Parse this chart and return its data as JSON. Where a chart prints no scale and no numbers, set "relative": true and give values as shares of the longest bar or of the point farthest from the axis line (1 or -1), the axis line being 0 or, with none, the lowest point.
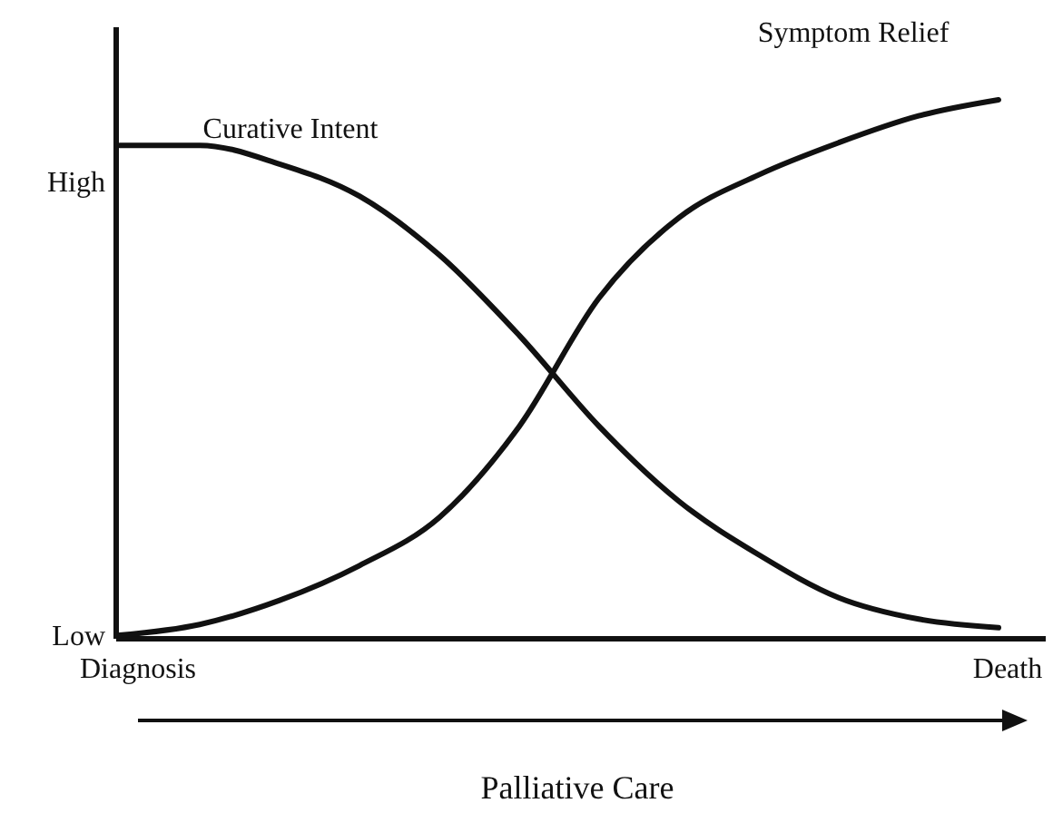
{
  "chart_data": {
    "type": "line",
    "relative": true,
    "xlabel": "Palliative Care",
    "annotations": [
      "High",
      "Low",
      "Diagnosis",
      "Death"
    ],
    "categories": [
      null,
      null,
      null,
      null,
      null,
      null,
      null,
      null,
      null,
      null,
      null,
      null
    ],
    "series": [
      {
        "name": "Curative Intent",
        "color": "#111111",
        "values": [
          0.915,
          0.915,
          0.88,
          0.82,
          0.71,
          0.56,
          0.39,
          0.25,
          0.15,
          0.07,
          0.03,
          0.014
        ]
      },
      {
        "name": "Symptom Relief",
        "color": "#111111",
        "values": [
          0.0,
          0.02,
          0.065,
          0.13,
          0.22,
          0.39,
          0.63,
          0.78,
          0.86,
          0.92,
          0.97,
          1.0
        ]
      }
    ],
    "grid": false,
    "legend": false,
    "marker": "none",
    "line_style": "solid"
  }
}
